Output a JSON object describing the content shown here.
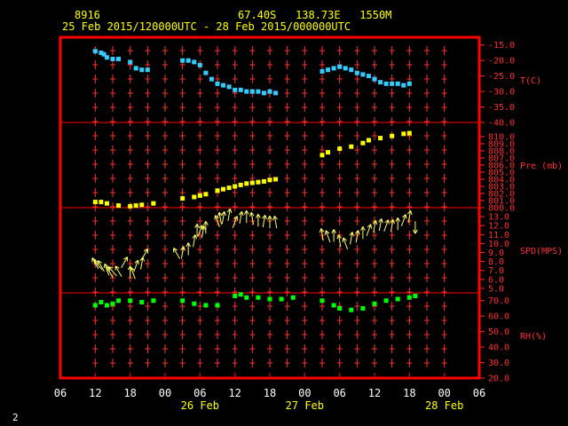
{
  "header": {
    "station": "8916",
    "location": "67.40S   138.73E   1550M",
    "period": "25 Feb 2015/120000UTC - 28 Feb 2015/000000UTC"
  },
  "page_number": "2",
  "colors": {
    "frame": "#ff0000",
    "tick": "#ff3030",
    "temperature": "#33ccff",
    "pressure": "#ffff00",
    "wind": "#ffff66",
    "humidity": "#00ff00"
  },
  "chart_data": [
    {
      "type": "scatter",
      "name": "T(C)",
      "ylabel": "T(C)",
      "ylim": [
        -40,
        -12.5
      ],
      "yticks": [
        -15,
        -20,
        -25,
        -30,
        -35,
        -40
      ],
      "ytick_labels": [
        "-15.0",
        "-20.0",
        "-25.0",
        "-30.0",
        "-35.0",
        "-40.0"
      ],
      "x": [
        12,
        13,
        13.5,
        14,
        15,
        16,
        18,
        19,
        20,
        21,
        27,
        28,
        29,
        30,
        31,
        32,
        33,
        34,
        35,
        36,
        37,
        38,
        39,
        40,
        41,
        42,
        43,
        51,
        52,
        53,
        54,
        55,
        56,
        57,
        58,
        59,
        60,
        61,
        62,
        63,
        64,
        65,
        66
      ],
      "values": [
        -17,
        -17.5,
        -18,
        -19,
        -19.5,
        -19.5,
        -20.5,
        -22.5,
        -23,
        -23,
        -20,
        -20,
        -20.5,
        -21.5,
        -24,
        -26,
        -27.5,
        -28,
        -28.5,
        -29.5,
        -29.5,
        -30,
        -30,
        -30,
        -30.5,
        -30,
        -30.5,
        -23.5,
        -23,
        -22.5,
        -22,
        -22.5,
        -23,
        -24,
        -24.5,
        -25,
        -26,
        -27,
        -27.5,
        -27.5,
        -27.5,
        -28,
        -27.5
      ]
    },
    {
      "type": "scatter",
      "name": "Pre (mb)",
      "ylabel": "Pre (mb)",
      "ylim": [
        800,
        812
      ],
      "yticks": [
        800,
        801,
        802,
        803,
        804,
        805,
        806,
        807,
        808,
        809,
        810
      ],
      "ytick_labels": [
        "800.0",
        "801.0",
        "802.0",
        "803.0",
        "804.0",
        "805.0",
        "806.0",
        "807.0",
        "808.0",
        "809.0",
        "810.0"
      ],
      "x": [
        12,
        13,
        14,
        16,
        18,
        19,
        20,
        22,
        27,
        29,
        30,
        31,
        33,
        34,
        35,
        36,
        37,
        38,
        39,
        40,
        41,
        42,
        43,
        51,
        52,
        54,
        56,
        58,
        59,
        61,
        63,
        65,
        66
      ],
      "values": [
        800.8,
        800.8,
        800.6,
        800.3,
        800.2,
        800.3,
        800.4,
        800.6,
        801.3,
        801.5,
        801.7,
        801.9,
        802.4,
        802.6,
        802.8,
        803.0,
        803.2,
        803.4,
        803.5,
        803.6,
        803.7,
        803.9,
        804.0,
        807.4,
        807.8,
        808.3,
        808.6,
        809.1,
        809.5,
        809.8,
        810.1,
        810.4,
        810.5
      ]
    },
    {
      "type": "scatter",
      "name": "SPD(MPS)",
      "ylabel": "SPD(MPS)",
      "ylim": [
        4.5,
        14
      ],
      "yticks": [
        5,
        6,
        7,
        8,
        9,
        10,
        11,
        12,
        13
      ],
      "ytick_labels": [
        "5.0",
        "6.0",
        "7.0",
        "8.0",
        "9.0",
        "10.0",
        "11.0",
        "12.0",
        "13.0"
      ],
      "x": [
        12,
        12.5,
        13,
        14,
        14.5,
        15,
        16,
        17,
        18,
        18.5,
        19,
        20,
        20.5,
        26,
        27,
        28,
        29,
        29.5,
        30,
        30.5,
        31,
        33,
        33.5,
        34,
        35,
        36,
        37,
        38,
        39,
        40,
        41,
        42,
        43,
        51,
        52,
        53,
        54,
        55,
        56,
        57,
        58,
        59,
        60,
        61,
        62,
        63,
        64,
        65,
        66,
        67
      ],
      "values": [
        7.8,
        7.6,
        7.5,
        7.1,
        6.8,
        6.9,
        6.9,
        7.9,
        6.8,
        6.7,
        7.5,
        7.8,
        8.8,
        8.9,
        9.0,
        9.4,
        10.3,
        11.5,
        11.4,
        11.3,
        11.8,
        12.5,
        12.8,
        12.9,
        13.2,
        12.4,
        12.9,
        13.0,
        12.8,
        12.6,
        12.5,
        12.4,
        12.4,
        11.0,
        10.8,
        10.9,
        10.3,
        10.0,
        10.6,
        10.8,
        11.2,
        11.5,
        11.9,
        12.1,
        12.0,
        12.0,
        12.2,
        12.6,
        13.0,
        11.8
      ],
      "dirs": [
        330,
        320,
        330,
        340,
        330,
        320,
        330,
        30,
        0,
        340,
        20,
        10,
        30,
        330,
        10,
        0,
        10,
        0,
        20,
        10,
        0,
        340,
        350,
        10,
        10,
        20,
        10,
        0,
        350,
        0,
        10,
        0,
        350,
        350,
        340,
        0,
        350,
        340,
        10,
        10,
        0,
        20,
        10,
        10,
        20,
        10,
        0,
        20,
        10,
        180
      ]
    },
    {
      "type": "scatter",
      "name": "RH(%)",
      "ylabel": "RH(%)",
      "ylim": [
        20,
        75
      ],
      "yticks": [
        20,
        30,
        40,
        50,
        60,
        70
      ],
      "ytick_labels": [
        "20.0",
        "30.0",
        "40.0",
        "50.0",
        "60.0",
        "70.0"
      ],
      "x": [
        12,
        13,
        14,
        15,
        16,
        18,
        20,
        22,
        27,
        29,
        31,
        33,
        36,
        37,
        38,
        40,
        42,
        44,
        46,
        51,
        53,
        54,
        56,
        58,
        60,
        62,
        64,
        66,
        67
      ],
      "values": [
        67,
        69,
        67,
        68,
        70,
        70,
        69,
        70,
        70,
        68,
        67,
        67,
        73,
        74,
        72,
        72,
        71,
        71,
        72,
        70,
        67,
        65,
        64,
        65,
        68,
        70,
        71,
        72,
        73
      ]
    }
  ],
  "x_axis": {
    "range_hours": [
      6,
      78
    ],
    "tick_hours": [
      6,
      12,
      18,
      24,
      30,
      36,
      42,
      48,
      54,
      60,
      66,
      72,
      78
    ],
    "tick_labels": [
      "06",
      "12",
      "18",
      "00",
      "06",
      "12",
      "18",
      "00",
      "06",
      "12",
      "18",
      "00",
      "06"
    ],
    "day_labels": [
      {
        "label": "26 Feb",
        "hour": 30
      },
      {
        "label": "27 Feb",
        "hour": 48
      },
      {
        "label": "28 Feb",
        "hour": 72
      }
    ]
  }
}
